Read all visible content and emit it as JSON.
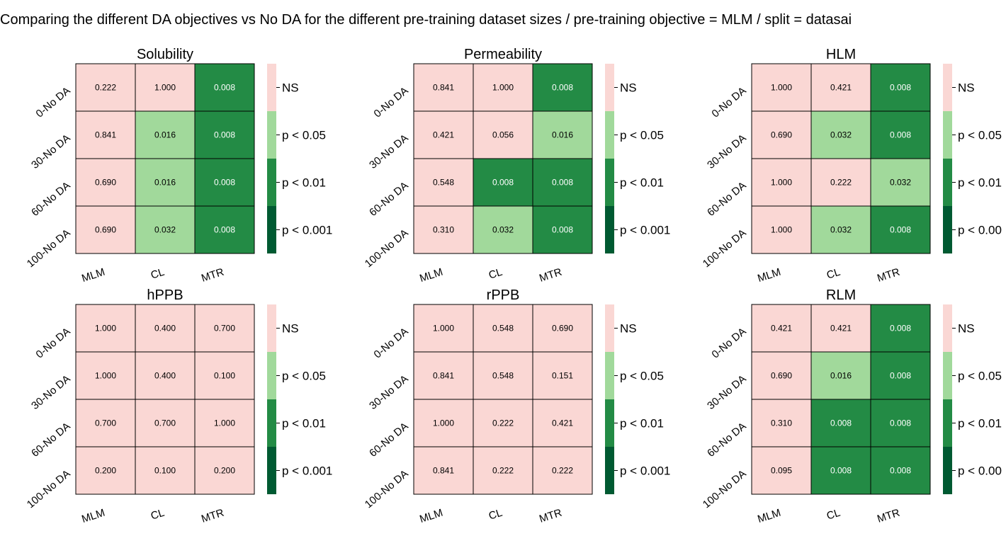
{
  "figure": {
    "title": "Comparing the different DA objectives vs No DA for the different pre-training dataset sizes / pre-training objective = MLM / split = datasai"
  },
  "colors": {
    "ns": "#fad7d4",
    "p05": "#a1d99b",
    "p01": "#238b45",
    "p001": "#005a32",
    "cell_border": "#000000",
    "text_dark": "#000000",
    "text_light": "#ffffff"
  },
  "legend": {
    "labels": [
      "NS",
      "p < 0.05",
      "p < 0.01",
      "p < 0.001"
    ],
    "clipped_last_label": "p < 0.00"
  },
  "chart_data": [
    {
      "type": "heatmap",
      "title": "Solubility",
      "rows": [
        "0-No DA",
        "30-No DA",
        "60-No DA",
        "100-No DA"
      ],
      "cols": [
        "MLM",
        "CL",
        "MTR"
      ],
      "values": [
        [
          "0.222",
          "1.000",
          "0.008"
        ],
        [
          "0.841",
          "0.016",
          "0.008"
        ],
        [
          "0.690",
          "0.016",
          "0.008"
        ],
        [
          "0.690",
          "0.032",
          "0.008"
        ]
      ]
    },
    {
      "type": "heatmap",
      "title": "Permeability",
      "rows": [
        "0-No DA",
        "30-No DA",
        "60-No DA",
        "100-No DA"
      ],
      "cols": [
        "MLM",
        "CL",
        "MTR"
      ],
      "values": [
        [
          "0.841",
          "1.000",
          "0.008"
        ],
        [
          "0.421",
          "0.056",
          "0.016"
        ],
        [
          "0.548",
          "0.008",
          "0.008"
        ],
        [
          "0.310",
          "0.032",
          "0.008"
        ]
      ]
    },
    {
      "type": "heatmap",
      "title": "HLM",
      "rows": [
        "0-No DA",
        "30-No DA",
        "60-No DA",
        "100-No DA"
      ],
      "cols": [
        "MLM",
        "CL",
        "MTR"
      ],
      "values": [
        [
          "1.000",
          "0.421",
          "0.008"
        ],
        [
          "0.690",
          "0.032",
          "0.008"
        ],
        [
          "1.000",
          "0.222",
          "0.032"
        ],
        [
          "1.000",
          "0.032",
          "0.008"
        ]
      ]
    },
    {
      "type": "heatmap",
      "title": "hPPB",
      "rows": [
        "0-No DA",
        "30-No DA",
        "60-No DA",
        "100-No DA"
      ],
      "cols": [
        "MLM",
        "CL",
        "MTR"
      ],
      "values": [
        [
          "1.000",
          "0.400",
          "0.700"
        ],
        [
          "1.000",
          "0.400",
          "0.100"
        ],
        [
          "0.700",
          "0.700",
          "1.000"
        ],
        [
          "0.200",
          "0.100",
          "0.200"
        ]
      ]
    },
    {
      "type": "heatmap",
      "title": "rPPB",
      "rows": [
        "0-No DA",
        "30-No DA",
        "60-No DA",
        "100-No DA"
      ],
      "cols": [
        "MLM",
        "CL",
        "MTR"
      ],
      "values": [
        [
          "1.000",
          "0.548",
          "0.690"
        ],
        [
          "0.841",
          "0.548",
          "0.151"
        ],
        [
          "1.000",
          "0.222",
          "0.421"
        ],
        [
          "0.841",
          "0.222",
          "0.222"
        ]
      ]
    },
    {
      "type": "heatmap",
      "title": "RLM",
      "rows": [
        "0-No DA",
        "30-No DA",
        "60-No DA",
        "100-No DA"
      ],
      "cols": [
        "MLM",
        "CL",
        "MTR"
      ],
      "values": [
        [
          "0.421",
          "0.421",
          "0.008"
        ],
        [
          "0.690",
          "0.016",
          "0.008"
        ],
        [
          "0.310",
          "0.008",
          "0.008"
        ],
        [
          "0.095",
          "0.008",
          "0.008"
        ]
      ]
    }
  ]
}
